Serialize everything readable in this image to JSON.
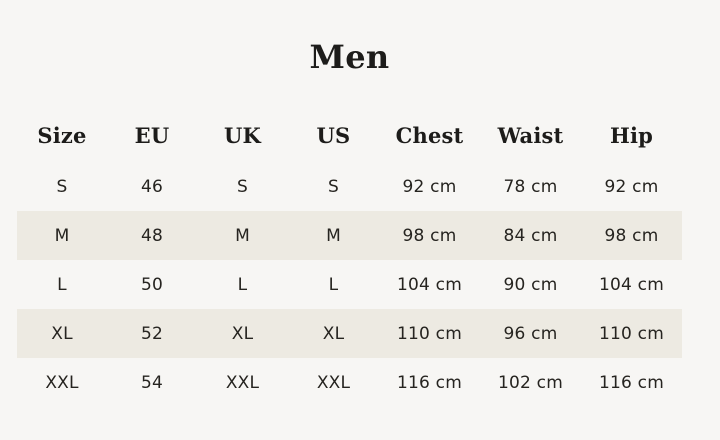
{
  "page": {
    "title": "Men"
  },
  "colors": {
    "background": "#f7f6f4",
    "row_stripe": "#edeae2",
    "text": "#1d1c1a"
  },
  "size_table": {
    "headers": [
      "Size",
      "EU",
      "UK",
      "US",
      "Chest",
      "Waist",
      "Hip"
    ],
    "rows": [
      [
        "S",
        "46",
        "S",
        "S",
        "92 cm",
        "78 cm",
        "92 cm"
      ],
      [
        "M",
        "48",
        "M",
        "M",
        "98 cm",
        "84 cm",
        "98 cm"
      ],
      [
        "L",
        "50",
        "L",
        "L",
        "104 cm",
        "90 cm",
        "104 cm"
      ],
      [
        "XL",
        "52",
        "XL",
        "XL",
        "110 cm",
        "96 cm",
        "110 cm"
      ],
      [
        "XXL",
        "54",
        "XXL",
        "XXL",
        "116 cm",
        "102 cm",
        "116 cm"
      ]
    ]
  }
}
